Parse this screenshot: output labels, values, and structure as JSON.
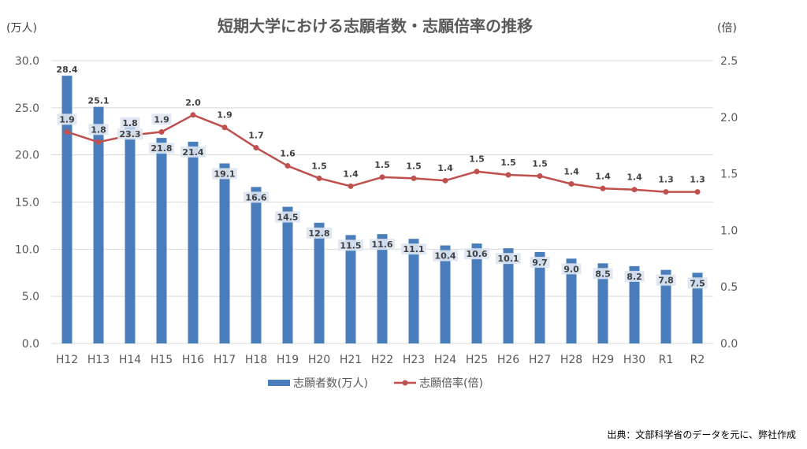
{
  "chart_data": {
    "type": "bar",
    "title": "短期大学における志願者数・志願倍率の推移",
    "left_axis_unit": "(万人)",
    "right_axis_unit": "(倍)",
    "categories": [
      "H12",
      "H13",
      "H14",
      "H15",
      "H16",
      "H17",
      "H18",
      "H19",
      "H20",
      "H21",
      "H22",
      "H23",
      "H24",
      "H25",
      "H26",
      "H27",
      "H28",
      "H29",
      "H30",
      "R1",
      "R2"
    ],
    "left_ylim": [
      0,
      30
    ],
    "left_ticks": [
      "0.0",
      "5.0",
      "10.0",
      "15.0",
      "20.0",
      "25.0",
      "30.0"
    ],
    "right_ylim": [
      0,
      2.5
    ],
    "right_ticks": [
      "0.0",
      "0.5",
      "1.0",
      "1.5",
      "2.0",
      "2.5"
    ],
    "series": [
      {
        "name": "志願者数(万人)",
        "kind": "bar",
        "axis": "left",
        "color": "#4a7ebb",
        "values": [
          28.4,
          25.1,
          23.3,
          21.8,
          21.4,
          19.1,
          16.6,
          14.5,
          12.8,
          11.5,
          11.6,
          11.1,
          10.4,
          10.6,
          10.1,
          9.7,
          9.0,
          8.5,
          8.2,
          7.8,
          7.5
        ],
        "labels": [
          "28.4",
          "25.1",
          "23.3",
          "21.8",
          "21.4",
          "19.1",
          "16.6",
          "14.5",
          "12.8",
          "11.5",
          "11.6",
          "11.1",
          "10.4",
          "10.6",
          "10.1",
          "9.7",
          "9.0",
          "8.5",
          "8.2",
          "7.8",
          "7.5"
        ]
      },
      {
        "name": "志願倍率(倍)",
        "kind": "line",
        "axis": "right",
        "color": "#c0504d",
        "values": [
          1.87,
          1.78,
          1.84,
          1.87,
          2.02,
          1.91,
          1.73,
          1.57,
          1.46,
          1.39,
          1.47,
          1.46,
          1.44,
          1.52,
          1.49,
          1.48,
          1.41,
          1.37,
          1.36,
          1.34,
          1.34
        ],
        "labels": [
          "1.9",
          "1.8",
          "1.8",
          "1.9",
          "2.0",
          "1.9",
          "1.7",
          "1.6",
          "1.5",
          "1.4",
          "1.5",
          "1.5",
          "1.4",
          "1.5",
          "1.5",
          "1.5",
          "1.4",
          "1.4",
          "1.4",
          "1.3",
          "1.3"
        ]
      }
    ],
    "legend_position": "bottom"
  },
  "source_note": "出典：文部科学省のデータを元に、弊社作成"
}
